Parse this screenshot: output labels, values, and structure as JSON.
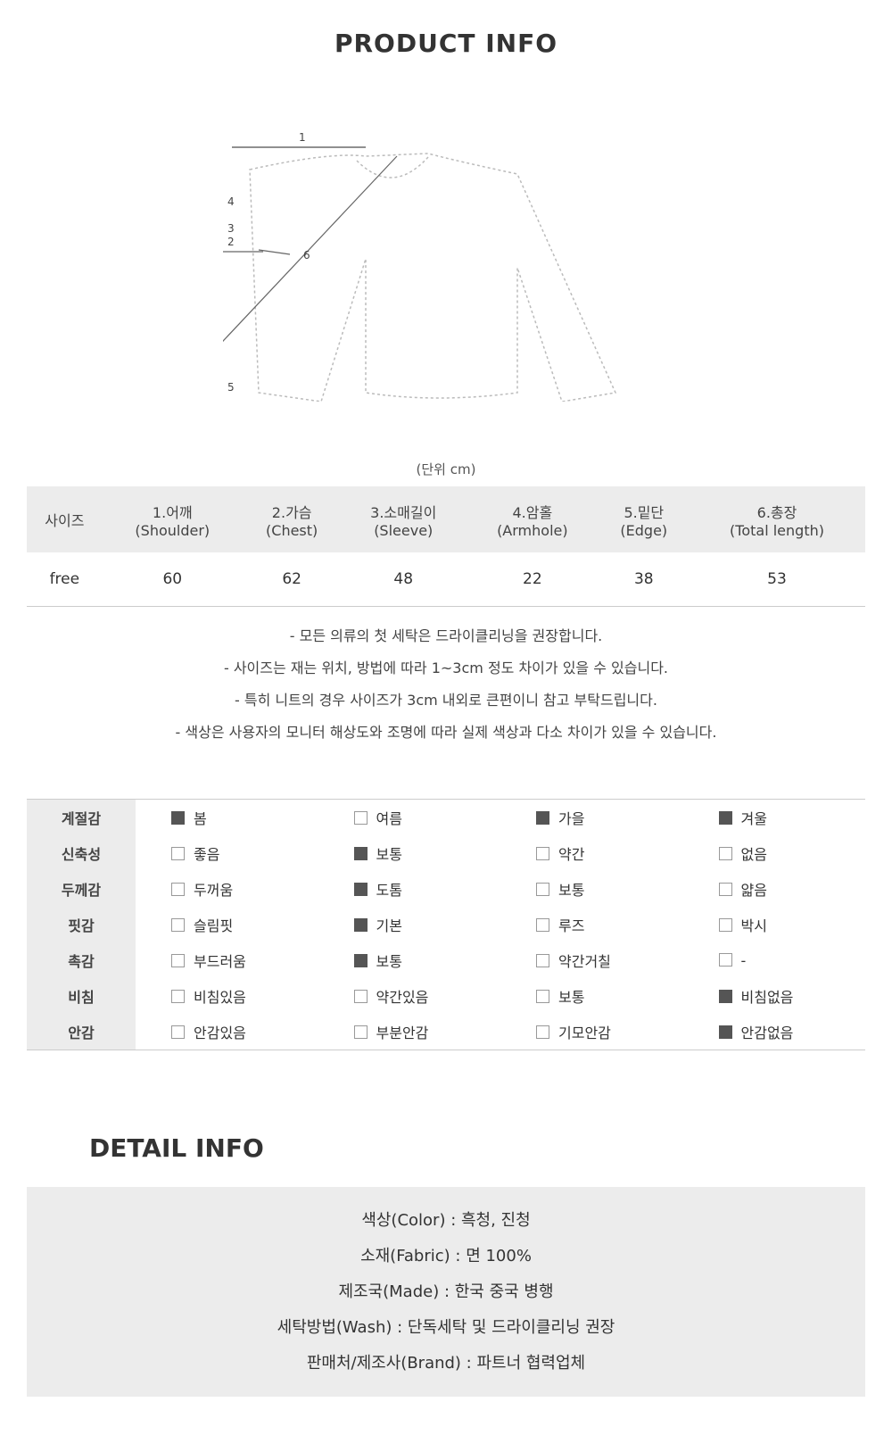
{
  "header": {
    "title": "PRODUCT INFO"
  },
  "diagram": {
    "labels": [
      "1",
      "2",
      "3",
      "4",
      "5",
      "6"
    ]
  },
  "size_table": {
    "unit": "(단위 cm)",
    "headers": [
      "사이즈",
      "1.어깨\n(Shoulder)",
      "2.가슴\n(Chest)",
      "3.소매길이\n(Sleeve)",
      "4.암홀\n(Armhole)",
      "5.밑단\n(Edge)",
      "6.총장\n(Total length)"
    ],
    "rows": [
      [
        "free",
        "60",
        "62",
        "48",
        "22",
        "38",
        "53"
      ]
    ]
  },
  "notes": [
    "- 모든 의류의 첫 세탁은 드라이클리닝을 권장합니다.",
    "- 사이즈는 재는 위치, 방법에 따라 1~3cm 정도 차이가 있을 수 있습니다.",
    "- 특히 니트의 경우 사이즈가 3cm 내외로 큰편이니 참고 부탁드립니다.",
    "- 색상은 사용자의 모니터 해상도와 조명에 따라 실제 색상과 다소 차이가 있을 수 있습니다."
  ],
  "attributes": {
    "rows": [
      {
        "label": "계절감",
        "options": [
          "봄",
          "여름",
          "가을",
          "겨울"
        ],
        "checked": [
          true,
          false,
          true,
          true
        ]
      },
      {
        "label": "신축성",
        "options": [
          "좋음",
          "보통",
          "약간",
          "없음"
        ],
        "checked": [
          false,
          true,
          false,
          false
        ]
      },
      {
        "label": "두께감",
        "options": [
          "두꺼움",
          "도톰",
          "보통",
          "얇음"
        ],
        "checked": [
          false,
          true,
          false,
          false
        ]
      },
      {
        "label": "핏감",
        "options": [
          "슬림핏",
          "기본",
          "루즈",
          "박시"
        ],
        "checked": [
          false,
          true,
          false,
          false
        ]
      },
      {
        "label": "촉감",
        "options": [
          "부드러움",
          "보통",
          "약간거칠",
          "-"
        ],
        "checked": [
          false,
          true,
          false,
          false
        ]
      },
      {
        "label": "비침",
        "options": [
          "비침있음",
          "약간있음",
          "보통",
          "비침없음"
        ],
        "checked": [
          false,
          false,
          false,
          true
        ]
      },
      {
        "label": "안감",
        "options": [
          "안감있음",
          "부분안감",
          "기모안감",
          "안감없음"
        ],
        "checked": [
          false,
          false,
          false,
          true
        ]
      }
    ]
  },
  "detail": {
    "title": "DETAIL INFO",
    "rows": [
      "색상(Color) : 흑청, 진청",
      "소재(Fabric) : 면 100%",
      "제조국(Made) : 한국 중국 병행",
      "세탁방법(Wash) : 단독세탁 및 드라이클리닝 권장",
      "판매처/제조사(Brand) : 파트너 협력업체"
    ]
  }
}
